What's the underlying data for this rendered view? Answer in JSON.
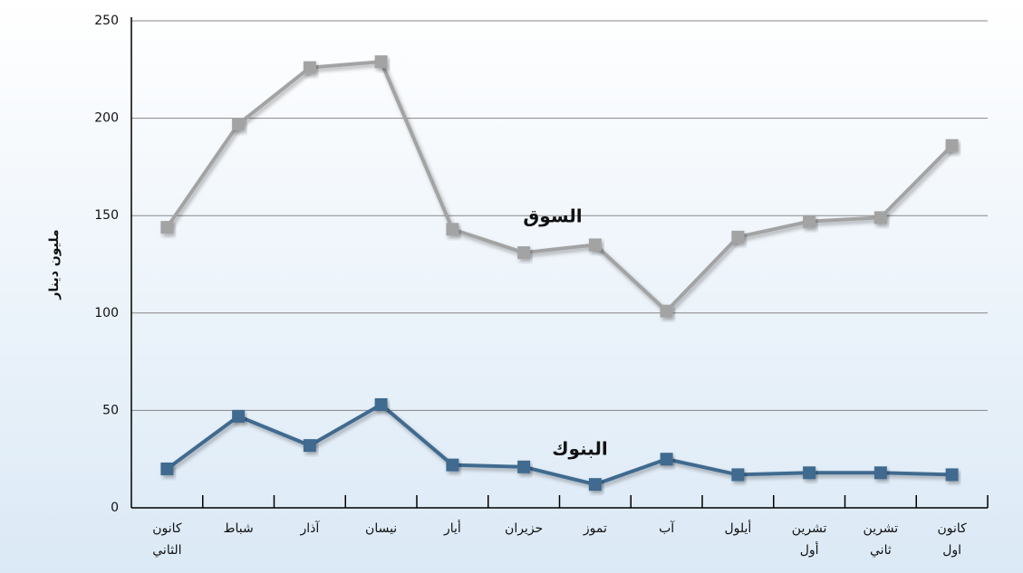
{
  "chart_data": {
    "type": "line",
    "ylabel": "مليون دينار",
    "categories": [
      "كانون الثاني",
      "شباط",
      "آذار",
      "نيسان",
      "أيار",
      "حزيران",
      "تموز",
      "آب",
      "أيلول",
      "تشرين أول",
      "تشرين ثاني",
      "كانون اول"
    ],
    "series": [
      {
        "name": "السوق",
        "color": "#a3a3a3",
        "values": [
          144,
          197,
          226,
          229,
          143,
          131,
          135,
          101,
          139,
          147,
          149,
          186
        ]
      },
      {
        "name": "البنوك",
        "color": "#3f6b8f",
        "values": [
          20,
          47,
          32,
          53,
          22,
          21,
          12,
          25,
          17,
          18,
          18,
          17
        ]
      }
    ],
    "ylim": [
      0,
      250
    ],
    "yticks": [
      0,
      50,
      100,
      150,
      200,
      250
    ],
    "grid": true
  }
}
